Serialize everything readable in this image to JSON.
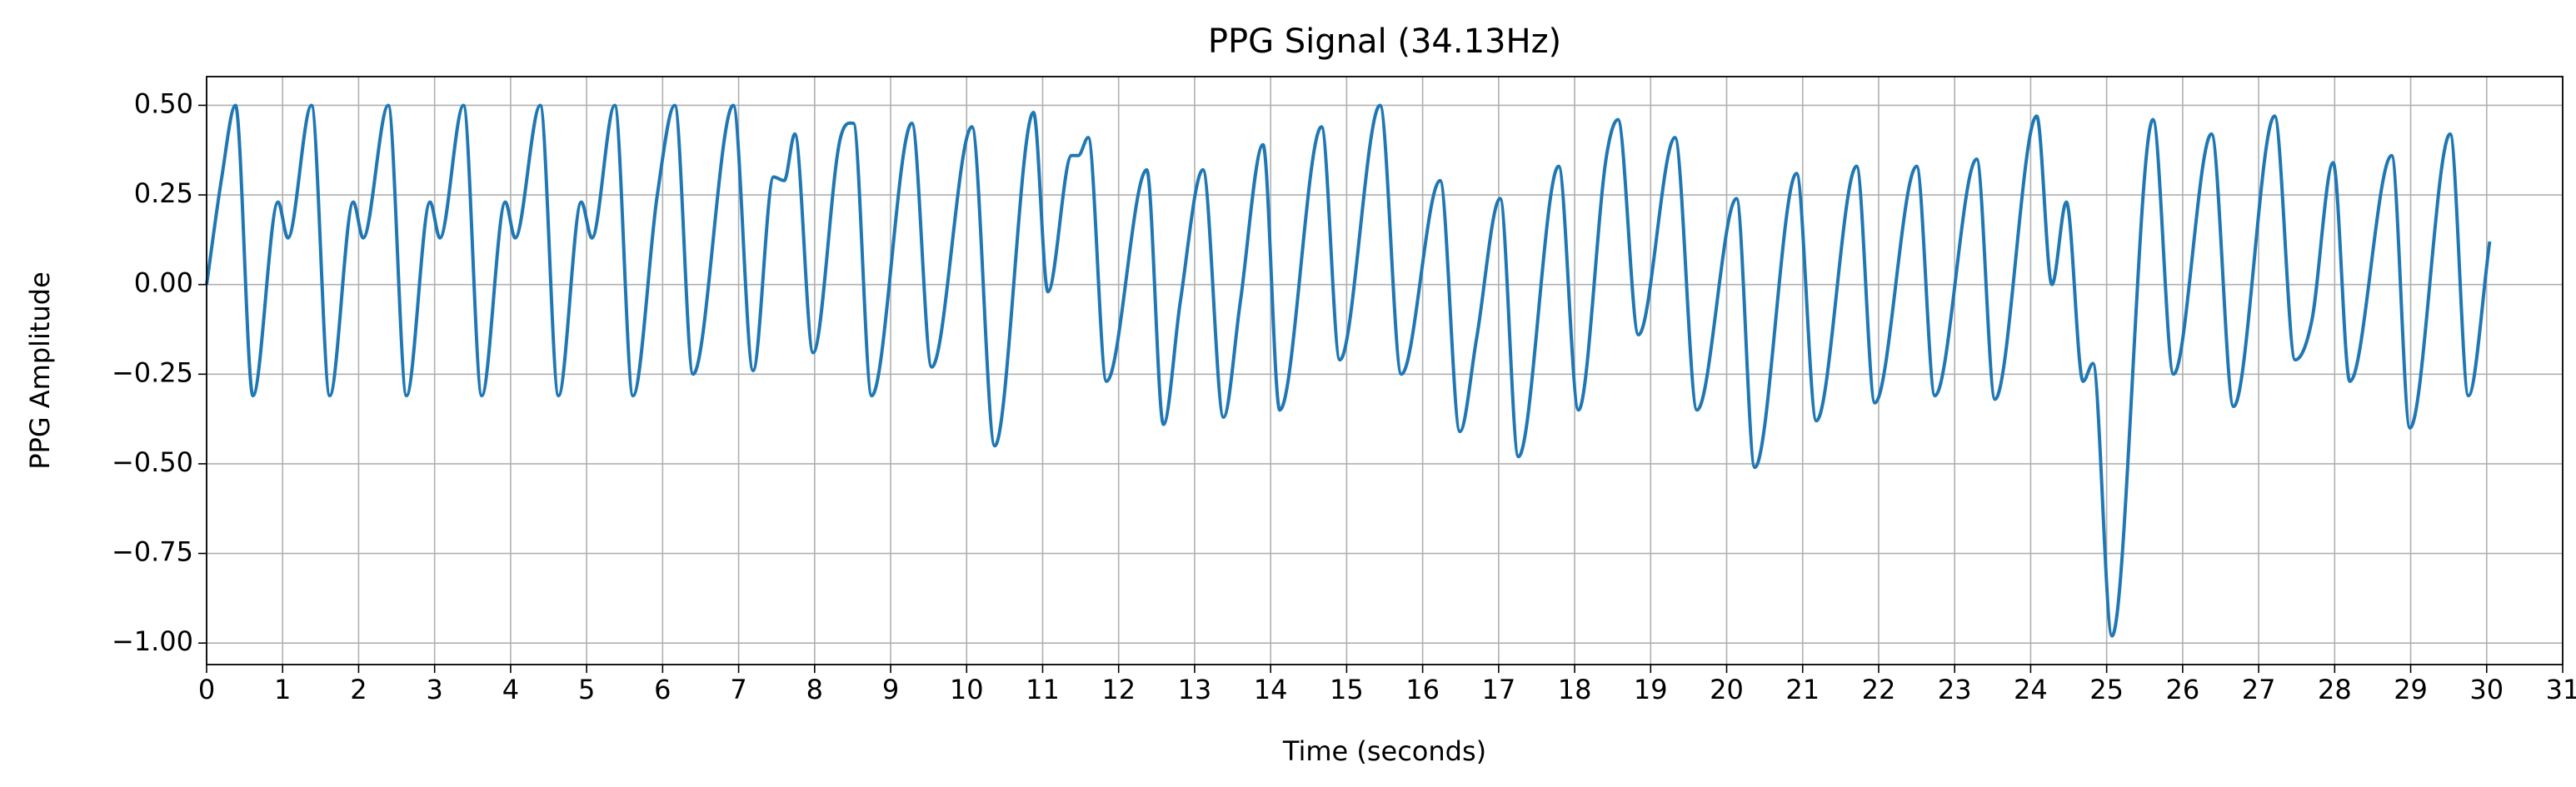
{
  "chart_data": {
    "type": "line",
    "title": "PPG Signal (34.13Hz)",
    "xlabel": "Time (seconds)",
    "ylabel": "PPG Amplitude",
    "x": [
      0,
      0.2,
      0.38,
      0.61,
      0.94,
      1.07,
      1.38,
      1.62,
      1.93,
      2.06,
      2.39,
      2.63,
      2.94,
      3.07,
      3.38,
      3.62,
      3.93,
      4.06,
      4.39,
      4.63,
      4.93,
      5.07,
      5.37,
      5.61,
      5.93,
      6.16,
      6.4,
      6.93,
      7.19,
      7.46,
      7.6,
      7.74,
      7.98,
      8.33,
      8.51,
      8.75,
      9.28,
      9.54,
      10.07,
      10.37,
      10.88,
      11.07,
      11.38,
      11.47,
      11.6,
      11.84,
      12.37,
      12.59,
      12.81,
      13.11,
      13.38,
      13.6,
      13.9,
      14.12,
      14.67,
      14.91,
      15.44,
      15.72,
      16.23,
      16.49,
      16.71,
      17.02,
      17.26,
      17.79,
      18.05,
      18.42,
      18.57,
      18.84,
      19.32,
      19.61,
      20.13,
      20.37,
      20.92,
      21.18,
      21.71,
      21.95,
      22.5,
      22.74,
      23.29,
      23.53,
      24.08,
      24.28,
      24.47,
      24.69,
      24.82,
      25.07,
      25.61,
      25.88,
      26.38,
      26.67,
      27.21,
      27.48,
      27.7,
      27.98,
      28.2,
      28.75,
      28.99,
      29.52,
      29.76,
      30.04
    ],
    "series": [
      {
        "color": "#1f77b4",
        "values": [
          0.0,
          0.3,
          0.5,
          -0.31,
          0.23,
          0.13,
          0.5,
          -0.31,
          0.23,
          0.13,
          0.5,
          -0.31,
          0.23,
          0.13,
          0.5,
          -0.31,
          0.23,
          0.13,
          0.5,
          -0.31,
          0.23,
          0.13,
          0.5,
          -0.31,
          0.25,
          0.5,
          -0.25,
          0.5,
          -0.24,
          0.3,
          0.29,
          0.42,
          -0.19,
          0.4,
          0.45,
          -0.31,
          0.45,
          -0.23,
          0.44,
          -0.45,
          0.48,
          -0.02,
          0.36,
          0.36,
          0.41,
          -0.27,
          0.32,
          -0.39,
          -0.05,
          0.32,
          -0.37,
          -0.05,
          0.39,
          -0.35,
          0.44,
          -0.21,
          0.5,
          -0.25,
          0.29,
          -0.41,
          -0.15,
          0.24,
          -0.48,
          0.33,
          -0.35,
          0.36,
          0.46,
          -0.14,
          0.41,
          -0.35,
          0.24,
          -0.51,
          0.31,
          -0.38,
          0.33,
          -0.33,
          0.33,
          -0.31,
          0.35,
          -0.32,
          0.47,
          0.0,
          0.23,
          -0.27,
          -0.22,
          -0.98,
          0.46,
          -0.25,
          0.42,
          -0.34,
          0.47,
          -0.21,
          -0.1,
          0.34,
          -0.27,
          0.36,
          -0.4,
          0.42,
          -0.31,
          0.12
        ]
      }
    ],
    "xlim": [
      0,
      31
    ],
    "ylim": [
      -1.06,
      0.58
    ],
    "xticks": [
      0,
      1,
      2,
      3,
      4,
      5,
      6,
      7,
      8,
      9,
      10,
      11,
      12,
      13,
      14,
      15,
      16,
      17,
      18,
      19,
      20,
      21,
      22,
      23,
      24,
      25,
      26,
      27,
      28,
      29,
      30,
      31
    ],
    "yticks": [
      {
        "value": -1,
        "label": "−1.00"
      },
      {
        "value": -0.75,
        "label": "−0.75"
      },
      {
        "value": -0.5,
        "label": "−0.50"
      },
      {
        "value": -0.25,
        "label": "−0.25"
      },
      {
        "value": 0,
        "label": "0.00"
      },
      {
        "value": 0.25,
        "label": "0.25"
      },
      {
        "value": 0.5,
        "label": "0.50"
      }
    ],
    "grid": true
  }
}
